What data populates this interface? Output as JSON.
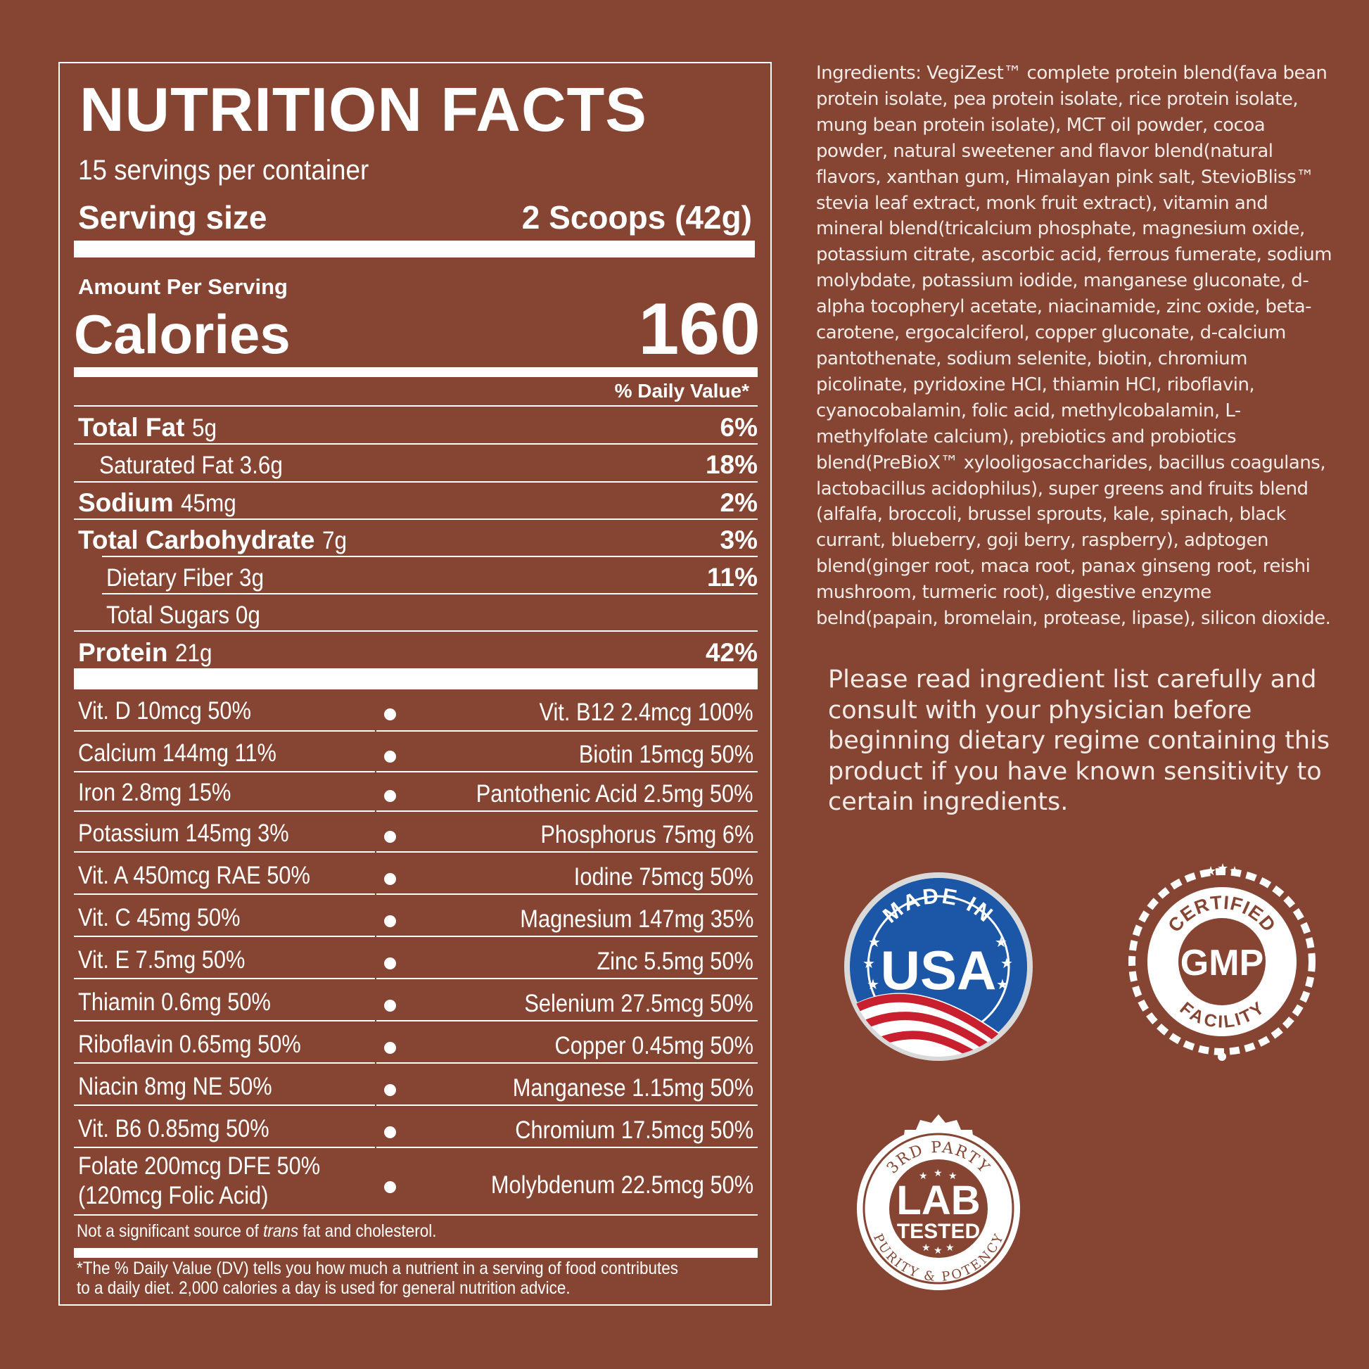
{
  "label": {
    "title": "NUTRITION FACTS",
    "servings_per_container": "15 servings per container",
    "serving_size_label": "Serving size",
    "serving_size_value": "2 Scoops (42g)",
    "amount_per_serving": "Amount Per Serving",
    "calories_label": "Calories",
    "calories_value": "160",
    "daily_value_header": "% Daily Value*",
    "nutrients": [
      {
        "name": "Total Fat",
        "amount": "5g",
        "dv": "6%"
      },
      {
        "name": "Saturated Fat 3.6g",
        "amount": "",
        "dv": "18%"
      },
      {
        "name": "Sodium",
        "amount": "45mg",
        "dv": "2%"
      },
      {
        "name": "Total Carbohydrate",
        "amount": "7g",
        "dv": "3%"
      },
      {
        "name": "Dietary Fiber 3g",
        "amount": "",
        "dv": "11%"
      },
      {
        "name": "Total Sugars 0g",
        "amount": "",
        "dv": ""
      },
      {
        "name": "Protein",
        "amount": "21g",
        "dv": "42%"
      }
    ],
    "vitamins": [
      {
        "left": "Vit. D 10mcg 50%",
        "right": "Vit. B12 2.4mcg 100%"
      },
      {
        "left": "Calcium 144mg 11%",
        "right": "Biotin 15mcg 50%"
      },
      {
        "left": "Iron 2.8mg 15%",
        "right": "Pantothenic Acid 2.5mg 50%"
      },
      {
        "left": "Potassium 145mg 3%",
        "right": "Phosphorus 75mg 6%"
      },
      {
        "left": "Vit. A 450mcg RAE 50%",
        "right": "Iodine 75mcg 50%"
      },
      {
        "left": "Vit. C 45mg 50%",
        "right": "Magnesium 147mg 35%"
      },
      {
        "left": "Vit. E 7.5mg 50%",
        "right": "Zinc 5.5mg 50%"
      },
      {
        "left": "Thiamin 0.6mg 50%",
        "right": "Selenium 27.5mcg 50%"
      },
      {
        "left": "Riboflavin 0.65mg 50%",
        "right": "Copper 0.45mg 50%"
      },
      {
        "left": "Niacin 8mg NE 50%",
        "right": "Manganese 1.15mg 50%"
      },
      {
        "left": "Vit. B6 0.85mg 50%",
        "right": "Chromium 17.5mcg 50%"
      },
      {
        "left": "Folate 200mcg DFE 50%",
        "left2": "(120mcg Folic Acid)",
        "right": "Molybdenum 22.5mcg 50%"
      }
    ],
    "not_significant_pre": "Not a significant source of ",
    "not_significant_trans": "trans",
    "not_significant_post": " fat and cholesterol.",
    "dv_footnote": "*The % Daily Value (DV) tells you how much a nutrient in a serving of food contributes to a daily diet. 2,000 calories a day is used for general nutrition advice."
  },
  "ingredients_text": "Ingredients: VegiZest™ complete protein blend(fava bean protein isolate, pea protein isolate, rice protein isolate, mung bean protein isolate), MCT oil powder, cocoa powder, natural sweetener and flavor blend(natural flavors, xanthan gum, Himalayan pink salt, StevioBliss™ stevia leaf extract, monk fruit extract), vitamin and mineral blend(tricalcium phosphate, magnesium oxide, potassium citrate, ascorbic acid, ferrous fumerate, sodium molybdate, potassium iodide, manganese gluconate, d-alpha tocopheryl acetate, niacinamide, zinc oxide, beta-carotene, ergocalciferol, copper gluconate, d-calcium pantothenate, sodium selenite, biotin, chromium picolinate, pyridoxine HCI, thiamin HCI, riboflavin, cyanocobalamin, folic acid, methylcobalamin, L-methylfolate calcium), prebiotics and probiotics blend(PreBioX™ xylooligosaccharides, bacillus coagulans, lactobacillus acidophilus), super greens and fruits blend (alfalfa, broccoli, brussel sprouts, kale, spinach, black currant, blueberry, goji berry, raspberry), adptogen blend(ginger root, maca root, panax ginseng root, reishi mushroom, turmeric root), digestive enzyme belnd(papain, bromelain, protease, lipase), silicon dioxide.",
  "warning_text": "Please read ingredient list carefully and consult with your physician before beginning dietary regime containing this product if you have known sensitivity to certain ingredients.",
  "badges": {
    "usa": {
      "top": "MADE IN",
      "main": "USA"
    },
    "gmp": {
      "top": "CERTIFIED",
      "main": "GMP",
      "bottom": "FACILITY"
    },
    "lab": {
      "top": "3RD PARTY",
      "main1": "LAB",
      "main2": "TESTED",
      "bottom": "PURITY & POTENCY"
    }
  },
  "colors": {
    "background": "#864533",
    "text": "#ffffff",
    "usa_blue": "#1c56a6",
    "usa_red": "#c8202f"
  }
}
